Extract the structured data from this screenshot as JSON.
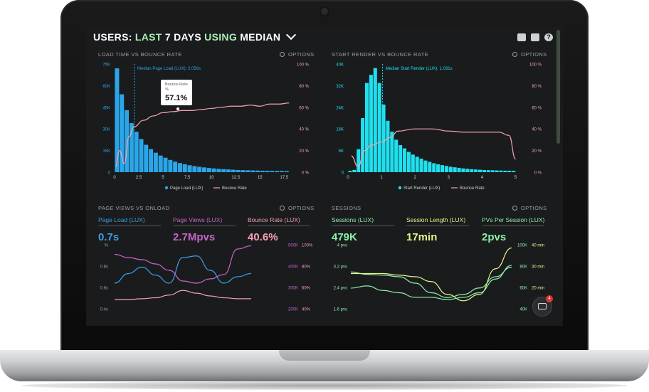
{
  "header": {
    "w1": "USERS:",
    "w2": "LAST",
    "w3": "7 DAYS",
    "w4": "USING",
    "w5": "MEDIAN"
  },
  "panels": {
    "load": {
      "title": "LOAD TIME VS BOUNCE RATE",
      "options": "OPTIONS",
      "median_label": "Median Page Load (LUX): 2.056s",
      "tooltip": {
        "label": "Bounce Rate",
        "sub": "%",
        "value": "57.1%"
      },
      "legend": [
        "Page Load (LUX)",
        "Bounce Rate"
      ]
    },
    "render": {
      "title": "START RENDER VS BOUNCE RATE",
      "options": "OPTIONS",
      "median_label": "Median Start Render (LUX): 1.031s",
      "legend": [
        "Start Render (LUX)",
        "Bounce Rate"
      ]
    },
    "pageviews": {
      "title": "PAGE VIEWS VS ONLOAD",
      "options": "OPTIONS",
      "metrics": [
        {
          "label": "Page Load (LUX)",
          "value": "0.7s",
          "color": "#3aa0e6"
        },
        {
          "label": "Page Views (LUX)",
          "value": "2.7Mpvs",
          "color": "#c766c9"
        },
        {
          "label": "Bounce Rate (LUX)",
          "value": "40.6%",
          "color": "#f5a0b4"
        }
      ],
      "y_left_ticks": [
        "%",
        "0.8s",
        "0.6s",
        "0.4s"
      ],
      "y_right1_ticks": [
        "500K",
        "400K",
        "300K",
        "200K"
      ],
      "y_right2_ticks": [
        "100%",
        "80%",
        "60%",
        "40%"
      ]
    },
    "sessions": {
      "title": "SESSIONS",
      "options": "OPTIONS",
      "metrics": [
        {
          "label": "Sessions (LUX)",
          "value": "479K",
          "color": "#8cf0a8"
        },
        {
          "label": "Session Length (LUX)",
          "value": "17min",
          "color": "#e5f58a"
        },
        {
          "label": "PVs Per Session (LUX)",
          "value": "2pvs",
          "color": "#8cf0a8"
        }
      ],
      "y_left_ticks": [
        "4 pvs",
        "3.2 pvs",
        "2.4 pvs",
        "1.6 pvs"
      ],
      "y_right1_ticks": [
        "100K",
        "80K",
        "60K",
        "40K"
      ],
      "y_right2_ticks": [
        "40 min",
        "30 min",
        "20 min",
        ""
      ]
    }
  },
  "chat_badge": "4",
  "chart_data": [
    {
      "type": "bar",
      "title": "LOAD TIME VS BOUNCE RATE",
      "x_ticks": [
        "0",
        "2.5",
        "5",
        "7.5",
        "10",
        "12.5",
        "15",
        "17.5"
      ],
      "y_ticks_left": [
        "0",
        "15K",
        "30K",
        "45K",
        "60K",
        "75K"
      ],
      "y_ticks_right": [
        "0 %",
        "20 %",
        "40 %",
        "60 %",
        "80 %",
        "100 %"
      ],
      "bin_width": 0.5,
      "bars": [
        72000,
        54000,
        43000,
        34000,
        28000,
        23000,
        19000,
        16000,
        13500,
        11500,
        10000,
        8500,
        7300,
        6300,
        5500,
        4800,
        4200,
        3700,
        3300,
        2900,
        2600,
        2300,
        2100,
        1900,
        1700,
        1500,
        1400,
        1300,
        1200,
        1100,
        1000,
        950,
        900,
        850,
        800,
        750
      ],
      "bounce_x": [
        0.1,
        0.5,
        1.0,
        1.5,
        2.0,
        3.0,
        4.0,
        5.0,
        6.0,
        7.0,
        8.0,
        9.0,
        10.0,
        11.0,
        12.0,
        13.0,
        14.0,
        15.0,
        16.0,
        17.0,
        18.0
      ],
      "bounce_y": [
        5,
        20,
        8,
        33,
        42,
        48,
        52,
        55,
        56,
        57,
        57,
        58,
        59,
        60,
        61,
        61,
        62,
        61,
        63,
        63,
        64
      ],
      "median_x": 2.056,
      "series": [
        {
          "name": "Page Load (LUX)",
          "color": "#2aa6e8"
        },
        {
          "name": "Bounce Rate",
          "color": "#f4a3b3"
        }
      ]
    },
    {
      "type": "bar",
      "title": "START RENDER VS BOUNCE RATE",
      "x_ticks": [
        "0",
        "1",
        "2",
        "3",
        "4",
        "5"
      ],
      "y_ticks_left": [
        "0",
        "8K",
        "16K",
        "24K",
        "32K",
        "40K"
      ],
      "y_ticks_right": [
        "0 %",
        "20 %",
        "40 %",
        "60 %",
        "80 %",
        "100 %"
      ],
      "bin_width": 0.125,
      "bars": [
        500,
        800,
        8500,
        20000,
        33000,
        36000,
        38500,
        33000,
        25000,
        19000,
        15000,
        12000,
        10000,
        8800,
        7500,
        6500,
        5700,
        5000,
        4300,
        3800,
        3300,
        2900,
        2600,
        2300,
        2000,
        1800,
        1600,
        1400,
        1250,
        1100,
        1000,
        900,
        800,
        750,
        700,
        650,
        600,
        550,
        520,
        500
      ],
      "bounce_x": [
        0.1,
        0.3,
        0.5,
        0.7,
        1.0,
        1.25,
        1.5,
        2.0,
        2.5,
        3.0,
        3.5,
        4.0,
        4.5,
        4.8,
        5.0
      ],
      "bounce_y": [
        15,
        5,
        20,
        25,
        28,
        32,
        38,
        40,
        40,
        38,
        37,
        37,
        37,
        34,
        12
      ],
      "median_x": 1.031,
      "series": [
        {
          "name": "Start Render (LUX)",
          "color": "#1fe0ef"
        },
        {
          "name": "Bounce Rate",
          "color": "#f4a3b3"
        }
      ]
    },
    {
      "type": "line",
      "title": "PAGE VIEWS VS ONLOAD",
      "series": [
        {
          "name": "Page Load (LUX)",
          "color": "#3aa0e6",
          "axis": "seconds",
          "x": [
            0,
            1,
            2,
            3,
            4,
            5,
            6,
            7,
            8,
            9,
            10
          ],
          "values": [
            0.56,
            0.62,
            0.66,
            0.61,
            0.56,
            0.72,
            0.73,
            0.64,
            0.56,
            0.6,
            0.62
          ]
        },
        {
          "name": "Page Views (LUX)",
          "color": "#c766c9",
          "axis": "count",
          "x": [
            0,
            1,
            2,
            3,
            4,
            5,
            6,
            7,
            8,
            9,
            10
          ],
          "values": [
            455000,
            440000,
            430000,
            410000,
            380000,
            330000,
            320000,
            340000,
            360000,
            480000,
            495000
          ]
        },
        {
          "name": "Bounce Rate (LUX)",
          "color": "#f5a0b4",
          "axis": "percent",
          "x": [
            0,
            1,
            2,
            3,
            4,
            5,
            6,
            7,
            8,
            9,
            10
          ],
          "values": [
            40,
            40,
            41,
            42,
            45,
            50,
            47,
            44,
            42,
            41,
            41
          ]
        }
      ]
    },
    {
      "type": "line",
      "title": "SESSIONS",
      "series": [
        {
          "name": "Sessions (LUX)",
          "color": "#8cf0a8",
          "axis": "count",
          "x": [
            0,
            1,
            2,
            3,
            4,
            5,
            6,
            7,
            8,
            9,
            10
          ],
          "values": [
            76000,
            73000,
            72000,
            70000,
            62000,
            50000,
            44000,
            48000,
            56000,
            70000,
            82000
          ]
        },
        {
          "name": "Session Length (LUX)",
          "color": "#e5f58a",
          "axis": "minutes",
          "x": [
            0,
            1,
            2,
            3,
            4,
            5,
            6,
            7,
            8,
            9,
            10
          ],
          "values": [
            22,
            22,
            22,
            21,
            20,
            17,
            9,
            5,
            9,
            25,
            38
          ]
        },
        {
          "name": "PVs Per Session (LUX)",
          "color": "#8cf0a8",
          "axis": "pvs",
          "x": [
            0,
            1,
            2,
            3,
            4,
            5,
            6,
            7,
            8,
            9,
            10
          ],
          "values": [
            2.1,
            2.2,
            2.0,
            1.9,
            1.7,
            1.7,
            1.6,
            1.7,
            1.9,
            2.5,
            3.1
          ]
        }
      ]
    }
  ]
}
